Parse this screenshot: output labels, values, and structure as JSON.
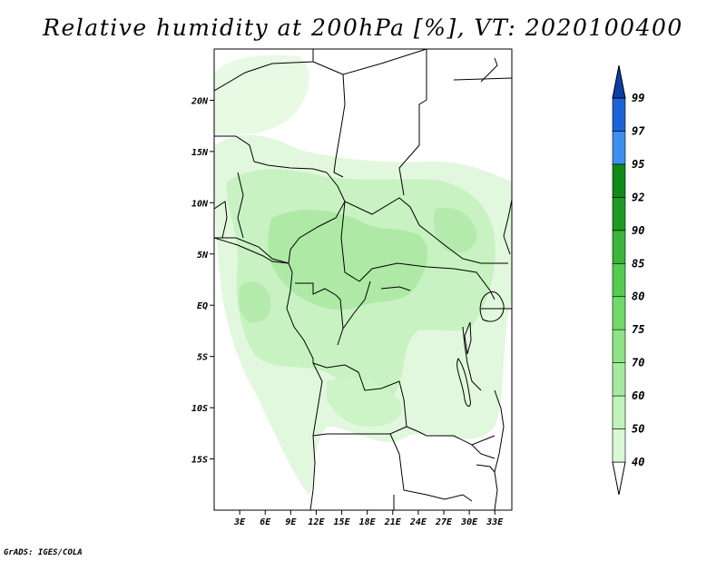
{
  "title": "Relative humidity at 200hPa [%], VT: 2020100400",
  "credit": "GrADS: IGES/COLA",
  "map": {
    "lat_labels": [
      "20N",
      "15N",
      "10N",
      "5N",
      "EQ",
      "5S",
      "10S",
      "15S"
    ],
    "lon_labels": [
      "3E",
      "6E",
      "9E",
      "12E",
      "15E",
      "18E",
      "21E",
      "24E",
      "27E",
      "30E",
      "33E"
    ],
    "lon_range_deg": [
      0,
      35
    ],
    "lat_range_deg": [
      -20,
      25
    ]
  },
  "colorbar": {
    "levels": [
      "40",
      "50",
      "60",
      "70",
      "75",
      "80",
      "85",
      "90",
      "92",
      "95",
      "97",
      "99"
    ],
    "colors": [
      "#f0fcf0",
      "#d9f7d5",
      "#c2f2bb",
      "#a6eaa0",
      "#8ee384",
      "#6fd96a",
      "#55cc50",
      "#3bb53a",
      "#209a22",
      "#0f8a1a",
      "#3d8ff0",
      "#1c63d8",
      "#0b3fa8"
    ]
  }
}
